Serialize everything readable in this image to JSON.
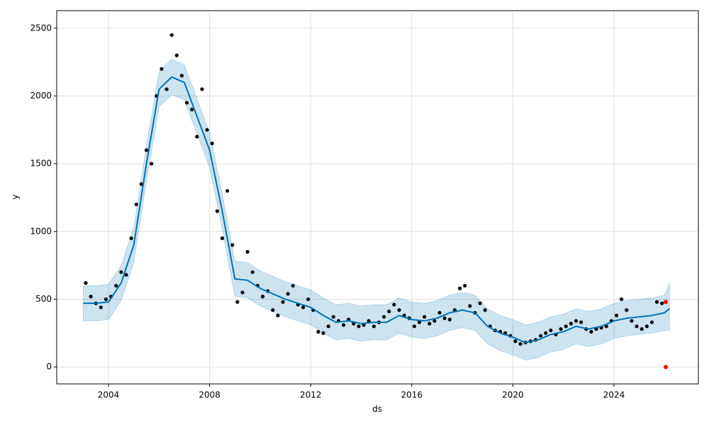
{
  "chart_data": {
    "type": "forecast",
    "xlabel": "ds",
    "ylabel": "y",
    "xlim": [
      2001.95,
      2027.34
    ],
    "ylim": [
      -125,
      2630
    ],
    "xticks": [
      2004,
      2008,
      2012,
      2016,
      2020,
      2024
    ],
    "yticks": [
      0,
      500,
      1000,
      1500,
      2000,
      2500
    ],
    "grid": true,
    "points": {
      "color": "#000000",
      "x": [
        2003.1,
        2003.3,
        2003.5,
        2003.7,
        2003.9,
        2004.1,
        2004.3,
        2004.5,
        2004.7,
        2004.9,
        2005.1,
        2005.3,
        2005.5,
        2005.7,
        2005.9,
        2006.1,
        2006.3,
        2006.5,
        2006.7,
        2006.9,
        2007.1,
        2007.3,
        2007.5,
        2007.7,
        2007.9,
        2008.1,
        2008.3,
        2008.5,
        2008.7,
        2008.9,
        2009.1,
        2009.3,
        2009.5,
        2009.7,
        2009.9,
        2010.1,
        2010.3,
        2010.5,
        2010.7,
        2010.9,
        2011.1,
        2011.3,
        2011.5,
        2011.7,
        2011.9,
        2012.1,
        2012.3,
        2012.5,
        2012.7,
        2012.9,
        2013.1,
        2013.3,
        2013.5,
        2013.7,
        2013.9,
        2014.1,
        2014.3,
        2014.5,
        2014.7,
        2014.9,
        2015.1,
        2015.3,
        2015.5,
        2015.7,
        2015.9,
        2016.1,
        2016.3,
        2016.5,
        2016.7,
        2016.9,
        2017.1,
        2017.3,
        2017.5,
        2017.7,
        2017.9,
        2018.1,
        2018.3,
        2018.5,
        2018.7,
        2018.9,
        2019.1,
        2019.3,
        2019.5,
        2019.7,
        2019.9,
        2020.1,
        2020.3,
        2020.5,
        2020.7,
        2020.9,
        2021.1,
        2021.3,
        2021.5,
        2021.7,
        2021.9,
        2022.1,
        2022.3,
        2022.5,
        2022.7,
        2022.9,
        2023.1,
        2023.3,
        2023.5,
        2023.7,
        2023.9,
        2024.1,
        2024.3,
        2024.5,
        2024.7,
        2024.9,
        2025.1,
        2025.3,
        2025.5,
        2025.7,
        2025.9
      ],
      "y": [
        620,
        520,
        470,
        440,
        500,
        520,
        600,
        700,
        680,
        950,
        1200,
        1350,
        1600,
        1500,
        2000,
        2200,
        2050,
        2450,
        2300,
        2150,
        1950,
        1900,
        1700,
        2050,
        1750,
        1650,
        1150,
        950,
        1300,
        900,
        480,
        550,
        850,
        700,
        600,
        520,
        560,
        420,
        380,
        480,
        540,
        600,
        460,
        440,
        500,
        420,
        260,
        250,
        300,
        370,
        340,
        310,
        350,
        320,
        300,
        310,
        340,
        300,
        330,
        370,
        410,
        460,
        420,
        380,
        360,
        300,
        330,
        370,
        320,
        340,
        400,
        360,
        350,
        420,
        580,
        600,
        450,
        400,
        470,
        420,
        300,
        270,
        260,
        250,
        230,
        190,
        170,
        180,
        190,
        200,
        230,
        250,
        270,
        240,
        280,
        300,
        320,
        340,
        330,
        280,
        260,
        280,
        290,
        300,
        340,
        380,
        500,
        420,
        340,
        300,
        280,
        300,
        330,
        480,
        470
      ]
    },
    "forecast": {
      "color": "#0072b2",
      "band_color": "#0072b2",
      "x": [
        2003.0,
        2003.5,
        2004.0,
        2004.5,
        2005.0,
        2005.5,
        2006.0,
        2006.5,
        2007.0,
        2007.5,
        2008.0,
        2008.5,
        2009.0,
        2009.5,
        2010.0,
        2010.5,
        2011.0,
        2011.5,
        2012.0,
        2012.5,
        2013.0,
        2013.5,
        2014.0,
        2014.5,
        2015.0,
        2015.5,
        2016.0,
        2016.5,
        2017.0,
        2017.5,
        2018.0,
        2018.5,
        2019.0,
        2019.5,
        2020.0,
        2020.5,
        2021.0,
        2021.5,
        2022.0,
        2022.5,
        2023.0,
        2023.5,
        2024.0,
        2024.5,
        2025.0,
        2025.5,
        2026.0,
        2026.2
      ],
      "yhat": [
        470,
        470,
        480,
        620,
        900,
        1500,
        2050,
        2140,
        2100,
        1850,
        1600,
        1150,
        650,
        640,
        580,
        540,
        500,
        470,
        440,
        380,
        330,
        340,
        320,
        330,
        330,
        380,
        350,
        340,
        360,
        400,
        420,
        400,
        300,
        250,
        220,
        180,
        200,
        240,
        260,
        300,
        280,
        300,
        340,
        360,
        370,
        380,
        400,
        430
      ],
      "lower": [
        340,
        340,
        350,
        490,
        770,
        1370,
        1920,
        2010,
        1970,
        1720,
        1470,
        1020,
        520,
        510,
        450,
        410,
        370,
        340,
        310,
        250,
        200,
        210,
        190,
        200,
        200,
        250,
        220,
        210,
        230,
        270,
        290,
        270,
        170,
        120,
        90,
        50,
        70,
        110,
        130,
        170,
        150,
        170,
        210,
        230,
        240,
        250,
        270,
        270
      ],
      "upper": [
        600,
        600,
        610,
        750,
        1030,
        1630,
        2180,
        2270,
        2230,
        1980,
        1730,
        1280,
        780,
        770,
        710,
        670,
        630,
        600,
        570,
        510,
        460,
        470,
        450,
        460,
        460,
        510,
        480,
        470,
        490,
        530,
        550,
        530,
        430,
        380,
        350,
        310,
        330,
        370,
        390,
        430,
        410,
        430,
        470,
        490,
        500,
        510,
        530,
        620
      ]
    },
    "holdout": {
      "color": "#ff0000",
      "x": [
        2026.05,
        2026.05
      ],
      "y": [
        480,
        0
      ]
    }
  }
}
